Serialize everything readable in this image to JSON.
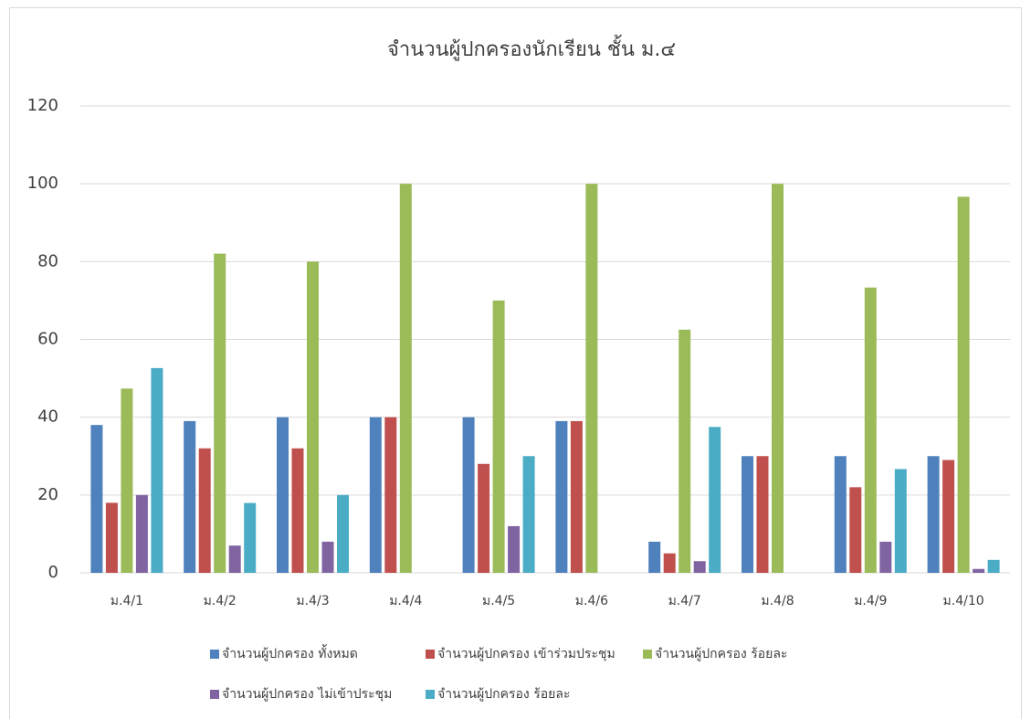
{
  "chart_data": {
    "type": "bar",
    "title": "จำนวนผู้ปกครองนักเรียน ชั้น ม.๔",
    "categories": [
      "ม.4/1",
      "ม.4/2",
      "ม.4/3",
      "ม.4/4",
      "ม.4/5",
      "ม.4/6",
      "ม.4/7",
      "ม.4/8",
      "ม.4/9",
      "ม.4/10"
    ],
    "series": [
      {
        "name": "จำนวนผู้ปกครอง ทั้งหมด",
        "color": "#4f81bd",
        "values": [
          38,
          39,
          40,
          40,
          40,
          39,
          8,
          30,
          30,
          30
        ]
      },
      {
        "name": "จำนวนผู้ปกครอง เข้าร่วมประชุม",
        "color": "#c0504d",
        "values": [
          18,
          32,
          32,
          40,
          28,
          39,
          5,
          30,
          22,
          29
        ]
      },
      {
        "name": "จำนวนผู้ปกครอง ร้อยละ",
        "color": "#9bbb59",
        "values": [
          47.37,
          82.05,
          80,
          100,
          70,
          100,
          62.5,
          100,
          73.33,
          96.67
        ]
      },
      {
        "name": "จำนวนผู้ปกครอง ไม่เข้าประชุม",
        "color": "#8064a2",
        "values": [
          20,
          7,
          8,
          0,
          12,
          0,
          3,
          0,
          8,
          1
        ]
      },
      {
        "name": "จำนวนผู้ปกครอง ร้อยละ",
        "color": "#4bacc6",
        "values": [
          52.63,
          17.95,
          20,
          0,
          30,
          0,
          37.5,
          0,
          26.67,
          3.33
        ]
      }
    ],
    "ylim": [
      0,
      120
    ],
    "yticks": [
      0,
      20,
      40,
      60,
      80,
      100,
      120
    ],
    "grid": true,
    "legend": "bottom"
  }
}
